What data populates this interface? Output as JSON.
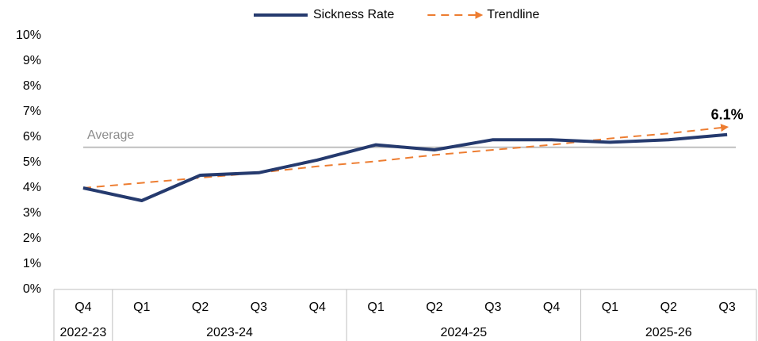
{
  "chart_data": {
    "type": "line",
    "categories": [
      "Q4",
      "Q1",
      "Q2",
      "Q3",
      "Q4",
      "Q1",
      "Q2",
      "Q3",
      "Q4",
      "Q1",
      "Q2",
      "Q3"
    ],
    "category_groups": [
      {
        "label": "2022-23",
        "count": 1
      },
      {
        "label": "2023-24",
        "count": 4
      },
      {
        "label": "2024-25",
        "count": 4
      },
      {
        "label": "2025-26",
        "count": 3
      }
    ],
    "series": [
      {
        "name": "Sickness Rate",
        "color": "#253a6e",
        "values": [
          4.0,
          3.5,
          4.5,
          4.6,
          5.1,
          5.7,
          5.5,
          5.9,
          5.9,
          5.8,
          5.9,
          6.1
        ],
        "value_labels": [
          null,
          null,
          null,
          null,
          null,
          null,
          null,
          null,
          null,
          null,
          null,
          "6.1%"
        ]
      },
      {
        "name": "Trendline",
        "color": "#ed7d31",
        "dashed": true,
        "values": [
          4.0,
          4.2,
          4.4,
          4.6,
          4.85,
          5.05,
          5.3,
          5.5,
          5.7,
          5.95,
          6.15,
          6.4
        ]
      }
    ],
    "average": {
      "label": "Average",
      "value": 5.6,
      "color": "#bfbfbf"
    },
    "ylim": [
      0,
      10
    ],
    "yticks": [
      {
        "value": 0,
        "label": "0%"
      },
      {
        "value": 1,
        "label": "1%"
      },
      {
        "value": 2,
        "label": "2%"
      },
      {
        "value": 3,
        "label": "3%"
      },
      {
        "value": 4,
        "label": "4%"
      },
      {
        "value": 5,
        "label": "5%"
      },
      {
        "value": 6,
        "label": "6%"
      },
      {
        "value": 7,
        "label": "7%"
      },
      {
        "value": 8,
        "label": "8%"
      },
      {
        "value": 9,
        "label": "9%"
      },
      {
        "value": 10,
        "label": "10%"
      }
    ],
    "legend": "top"
  }
}
